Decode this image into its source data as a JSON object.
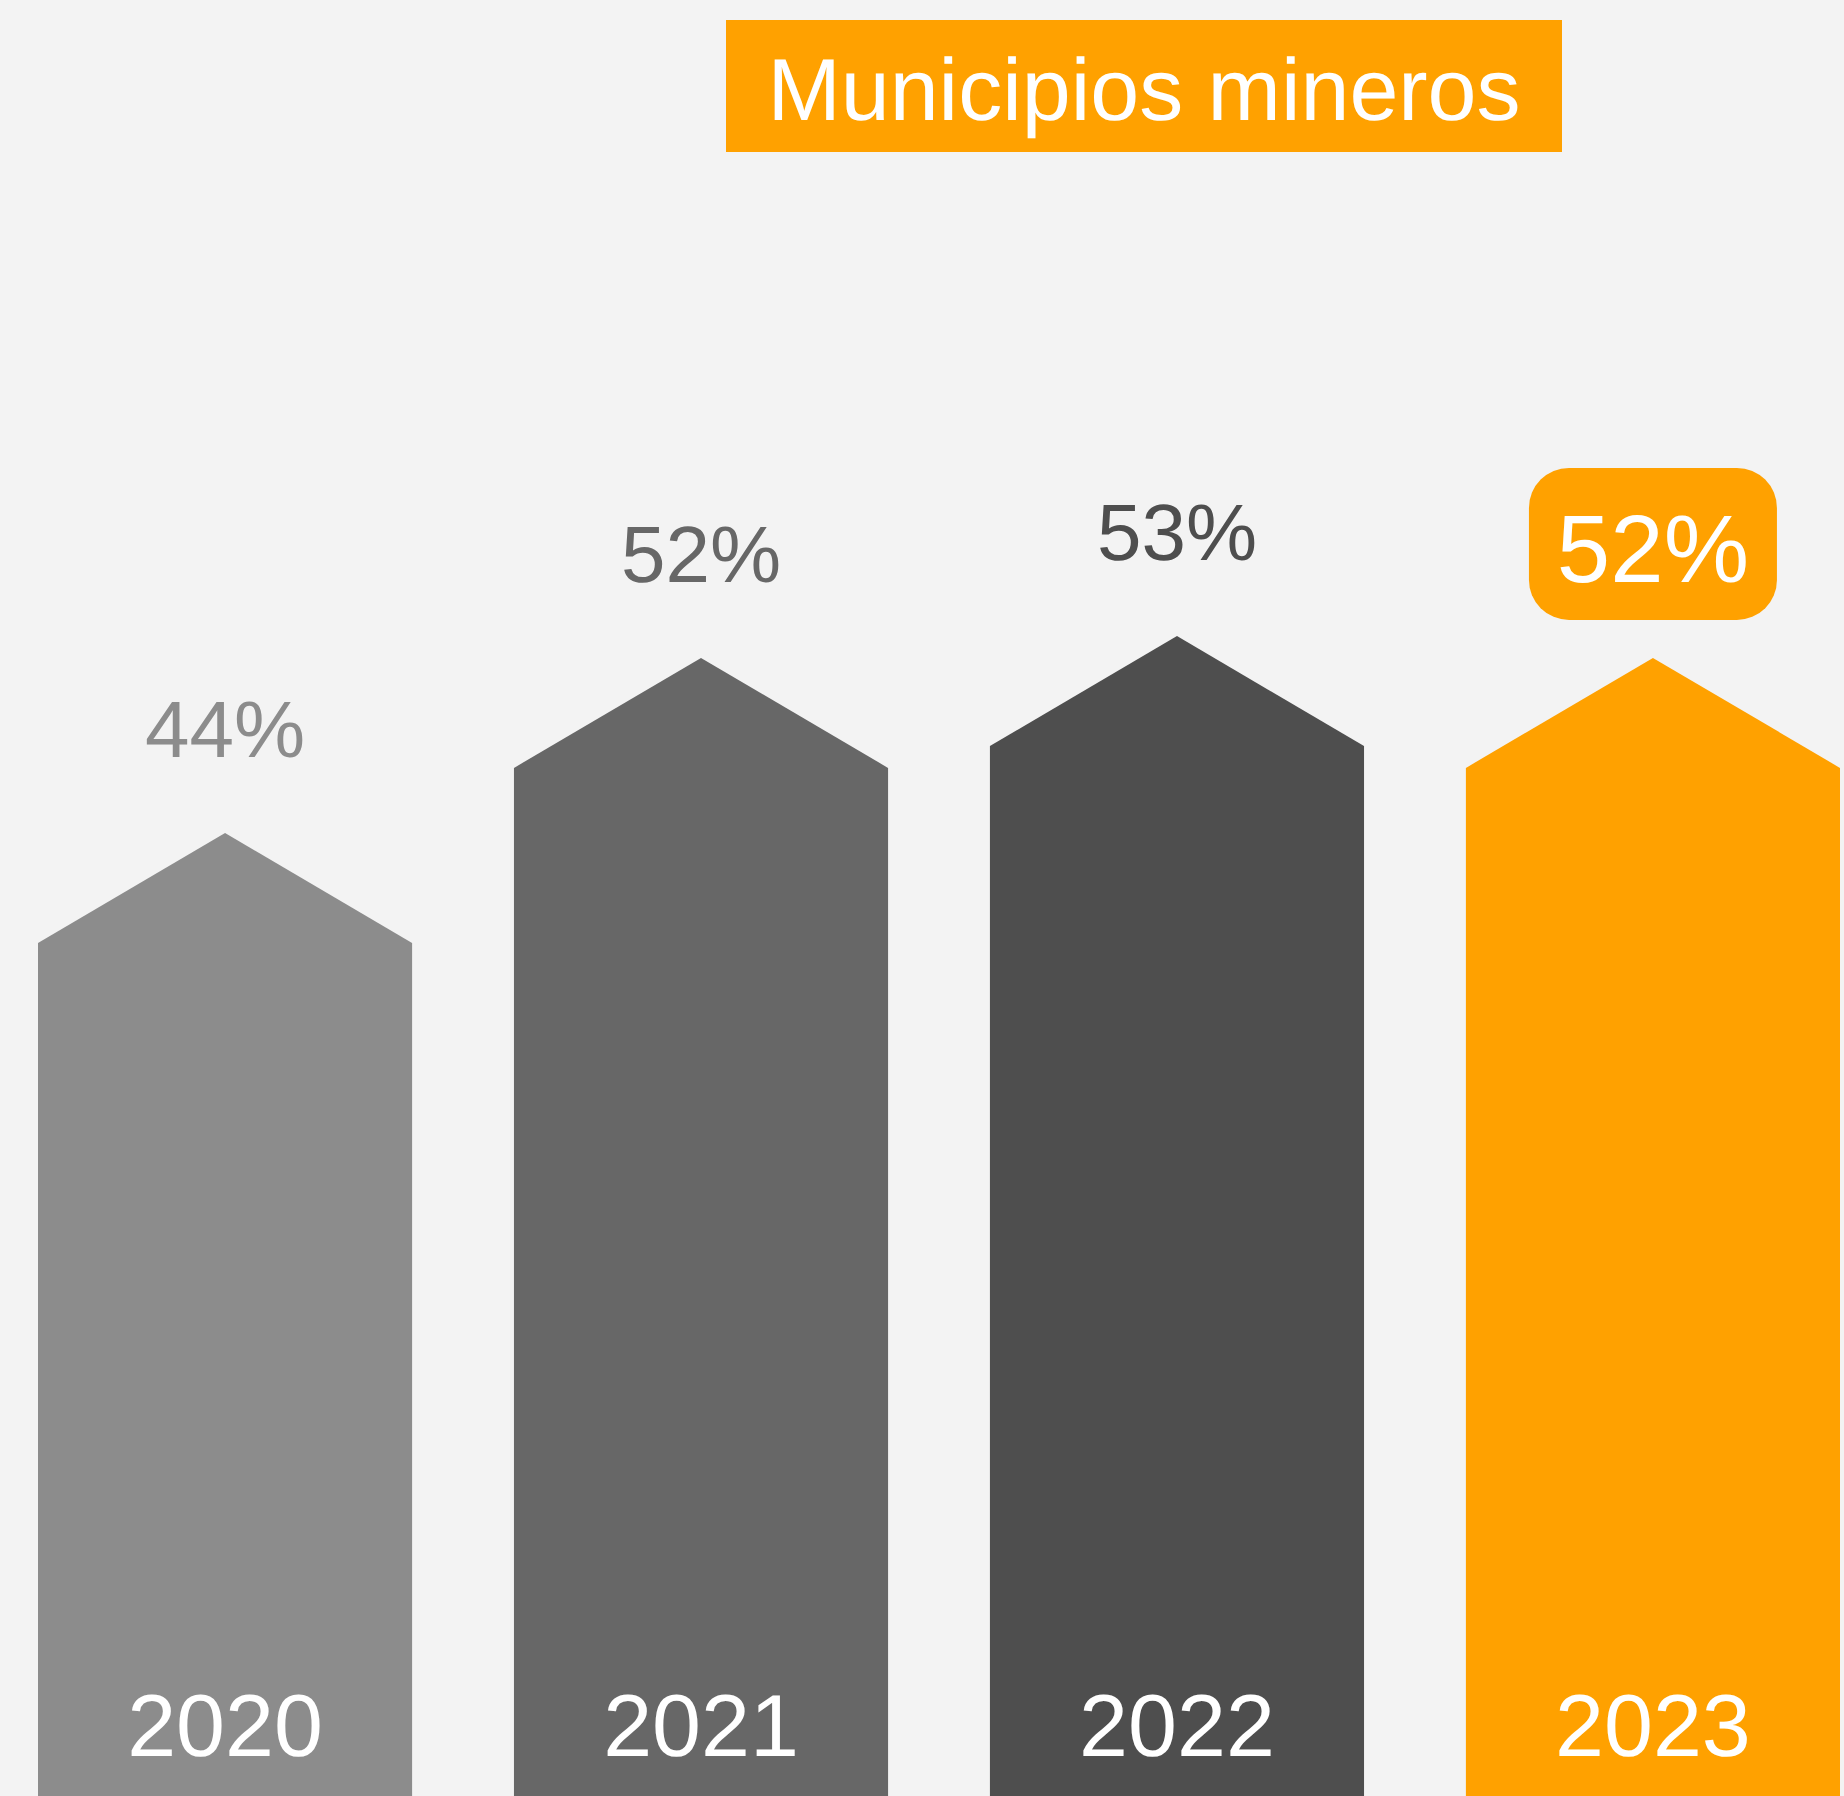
{
  "chart_data": {
    "type": "bar",
    "title": "Municipios mineros",
    "categories": [
      "2020",
      "2021",
      "2022",
      "2023"
    ],
    "values": [
      44,
      52,
      53,
      52
    ],
    "colors": [
      "#8c8c8c",
      "#676767",
      "#4e4e4e",
      "#ffa100"
    ],
    "value_labels": [
      "44%",
      "52%",
      "53%",
      "52%"
    ]
  }
}
